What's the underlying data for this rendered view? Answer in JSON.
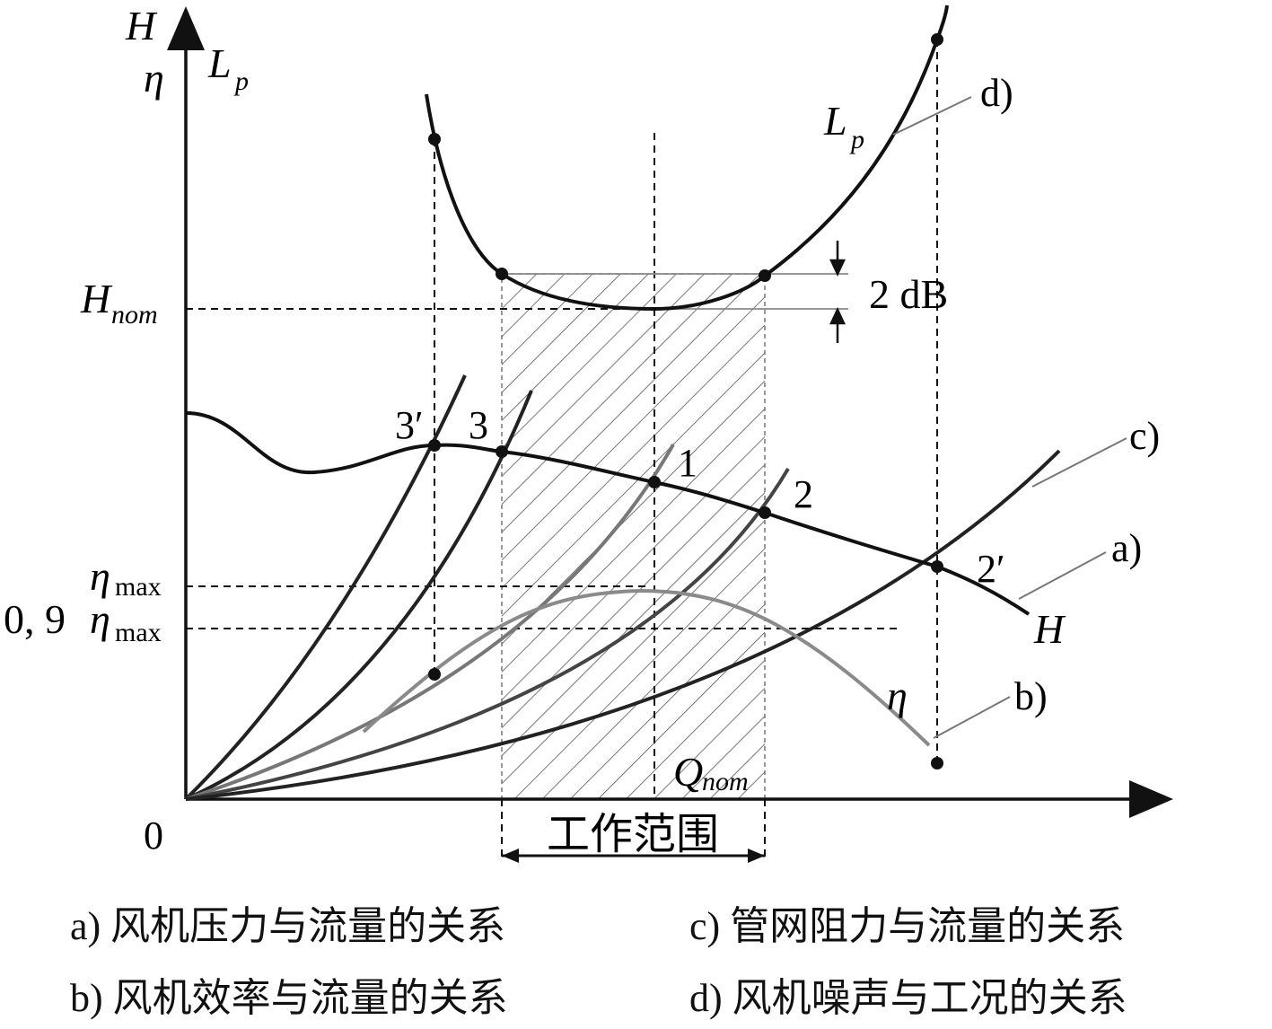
{
  "axes": {
    "y_label_H": "H",
    "y_label_eta": "η",
    "y_label_Lp": "L",
    "y_label_Lp_sub": "p",
    "origin": "0"
  },
  "levels": {
    "h_nom": "H",
    "h_nom_sub": "nom",
    "eta_max": "η",
    "eta_max_sub": "max",
    "eta_09_prefix": "0, 9 ",
    "eta_09": "η",
    "eta_09_sub": "max",
    "q_nom": "Q",
    "q_nom_sub": "nom"
  },
  "curve_labels": {
    "H": "H",
    "eta": "η",
    "Lp": "L",
    "Lp_sub": "p"
  },
  "point_labels": {
    "p1": "1",
    "p2": "2",
    "p2p": "2′",
    "p3": "3",
    "p3p": "3′"
  },
  "callouts": {
    "a": "a)",
    "b": "b)",
    "c": "c)",
    "d": "d)"
  },
  "db_label": "2 dB",
  "working_range": "工作范围",
  "legend": {
    "a": "a) 风机压力与流量的关系",
    "b": "b) 风机效率与流量的关系",
    "c": "c) 管网阻力与流量的关系",
    "d": "d) 风机噪声与工况的关系"
  }
}
